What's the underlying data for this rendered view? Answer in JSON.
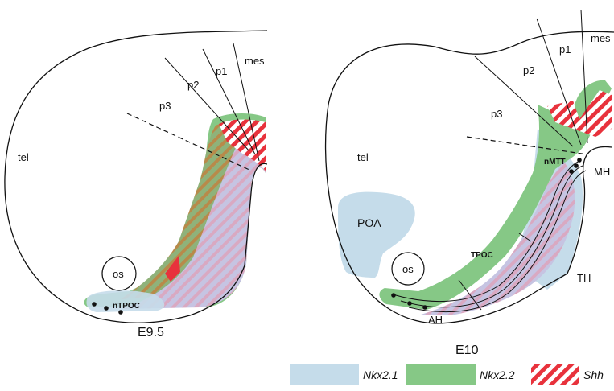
{
  "colors": {
    "nkx21": "#c5dcea",
    "nkx22": "#86c886",
    "shh": "#e8323c",
    "outline": "#111111",
    "background": "#ffffff"
  },
  "left_panel": {
    "stage": "E9.5",
    "labels": {
      "tel": "tel",
      "p3": "p3",
      "p2": "p2",
      "p1": "p1",
      "mes": "mes",
      "os": "os",
      "ntpoc": "nTPOC"
    }
  },
  "right_panel": {
    "stage": "E10",
    "labels": {
      "tel": "tel",
      "p3": "p3",
      "p2": "p2",
      "p1": "p1",
      "mes": "mes",
      "os": "os",
      "poa": "POA",
      "tpoc": "TPOC",
      "nmtt": "nMTT",
      "mh": "MH",
      "th": "TH",
      "ah": "AH"
    }
  },
  "legend": {
    "items": [
      {
        "label": "Nkx2.1",
        "swatch": "nkx21"
      },
      {
        "label": "Nkx2.2",
        "swatch": "nkx22"
      },
      {
        "label": "Shh",
        "swatch": "shh"
      }
    ]
  }
}
